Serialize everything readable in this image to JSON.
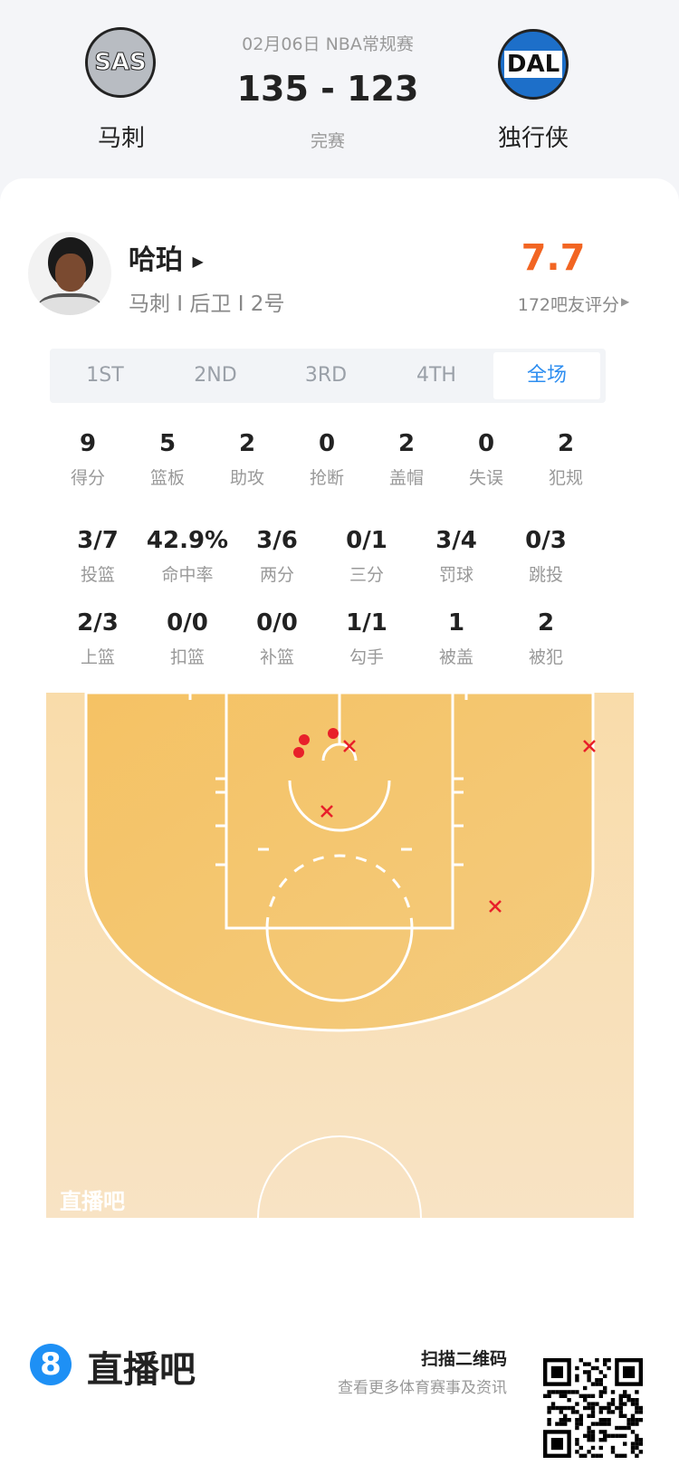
{
  "match": {
    "date_league": "02月06日 NBA常规赛",
    "score": "135 - 123",
    "status": "完赛",
    "home": {
      "abbr": "SAS",
      "name": "马刺"
    },
    "away": {
      "abbr": "DAL",
      "name": "独行侠"
    }
  },
  "player": {
    "name": "哈珀",
    "info": "马刺 I 后卫 I 2号",
    "rating": "7.7",
    "rating_count": "172吧友评分",
    "rating_color": "#f26522"
  },
  "tabs": [
    {
      "label": "1ST"
    },
    {
      "label": "2ND"
    },
    {
      "label": "3RD"
    },
    {
      "label": "4TH"
    },
    {
      "label": "全场",
      "active": true
    }
  ],
  "stats_row1": [
    {
      "v": "9",
      "l": "得分"
    },
    {
      "v": "5",
      "l": "篮板"
    },
    {
      "v": "2",
      "l": "助攻"
    },
    {
      "v": "0",
      "l": "抢断"
    },
    {
      "v": "2",
      "l": "盖帽"
    },
    {
      "v": "0",
      "l": "失误"
    },
    {
      "v": "2",
      "l": "犯规"
    }
  ],
  "stats_row2": [
    {
      "v": "3/7",
      "l": "投篮"
    },
    {
      "v": "42.9%",
      "l": "命中率"
    },
    {
      "v": "3/6",
      "l": "两分"
    },
    {
      "v": "0/1",
      "l": "三分"
    },
    {
      "v": "3/4",
      "l": "罚球"
    },
    {
      "v": "0/3",
      "l": "跳投"
    }
  ],
  "stats_row3": [
    {
      "v": "2/3",
      "l": "上篮"
    },
    {
      "v": "0/0",
      "l": "扣篮"
    },
    {
      "v": "0/0",
      "l": "补篮"
    },
    {
      "v": "1/1",
      "l": "勾手"
    },
    {
      "v": "1",
      "l": "被盖"
    },
    {
      "v": "2",
      "l": "被犯"
    }
  ],
  "court": {
    "watermark": "直播吧",
    "made_color": "#e8202a",
    "shots": [
      "made",
      "made",
      "made",
      "missed",
      "missed",
      "missed",
      "missed"
    ]
  },
  "footer": {
    "brand": "直播吧",
    "brand_icon": "8",
    "qr_title": "扫描二维码",
    "qr_sub": "查看更多体育赛事及资讯",
    "accent": "#1e90f5"
  }
}
